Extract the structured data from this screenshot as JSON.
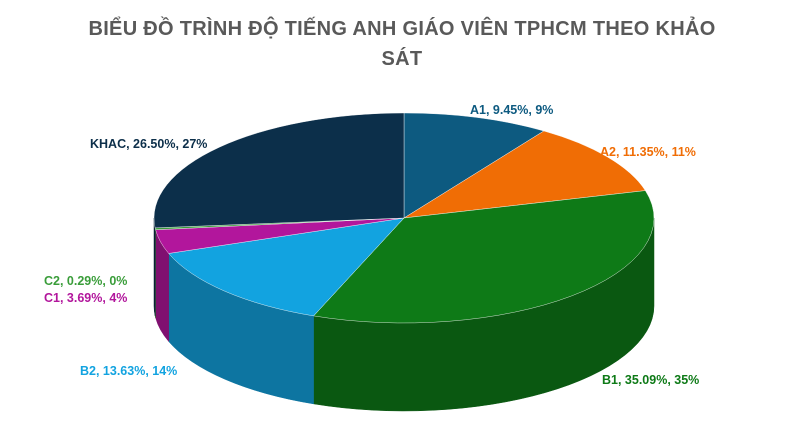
{
  "chart_data": {
    "type": "pie",
    "title_line1": "BIỂU ĐỒ TRÌNH ĐỘ TIẾNG ANH GIÁO VIÊN TPHCM THEO KHẢO",
    "title_line2": "SÁT",
    "style": "3d",
    "slices": [
      {
        "label": "A1",
        "value": 9.45,
        "pct_text": "9.45%",
        "rounded": "9%",
        "color": "#0d5a80"
      },
      {
        "label": "A2",
        "value": 11.35,
        "pct_text": "11.35%",
        "rounded": "11%",
        "color": "#f06d05"
      },
      {
        "label": "B1",
        "value": 35.09,
        "pct_text": "35.09%",
        "rounded": "35%",
        "color": "#0e7a17"
      },
      {
        "label": "B2",
        "value": 13.63,
        "pct_text": "13.63%",
        "rounded": "14%",
        "color": "#12a3e0"
      },
      {
        "label": "C1",
        "value": 3.69,
        "pct_text": "3.69%",
        "rounded": "4%",
        "color": "#b2169c"
      },
      {
        "label": "C2",
        "value": 0.29,
        "pct_text": "0.29%",
        "rounded": "0%",
        "color": "#3a9d3a"
      },
      {
        "label": "KHAC",
        "value": 26.5,
        "pct_text": "26.50%",
        "rounded": "27%",
        "color": "#0c2f4a"
      }
    ]
  }
}
